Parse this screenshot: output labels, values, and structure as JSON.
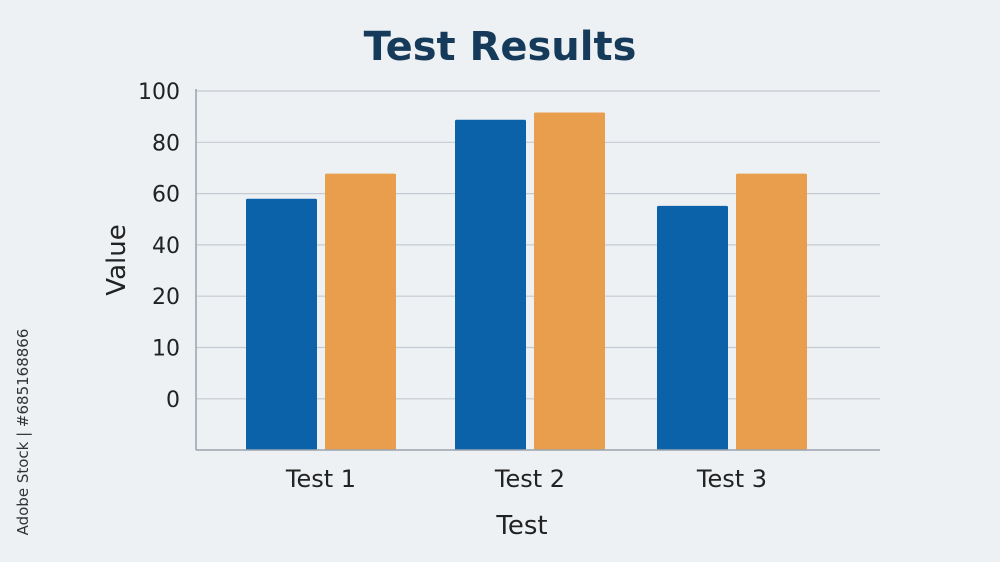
{
  "chart_data": {
    "type": "bar",
    "title": "Test Results",
    "xlabel": "Test",
    "ylabel": "Value",
    "categories": [
      "Test 1",
      "Test 2",
      "Test 3"
    ],
    "series": [
      {
        "values": [
          70,
          92,
          68
        ],
        "color": "#0c62a9"
      },
      {
        "values": [
          77,
          94,
          77
        ],
        "color": "#e89e4c"
      }
    ],
    "y_tick_labels": [
      "100",
      "80",
      "60",
      "40",
      "20",
      "10",
      "0"
    ],
    "ylim": [
      0,
      100
    ],
    "grid": true
  },
  "watermark": {
    "text": "Adobe Stock | #685168866"
  }
}
